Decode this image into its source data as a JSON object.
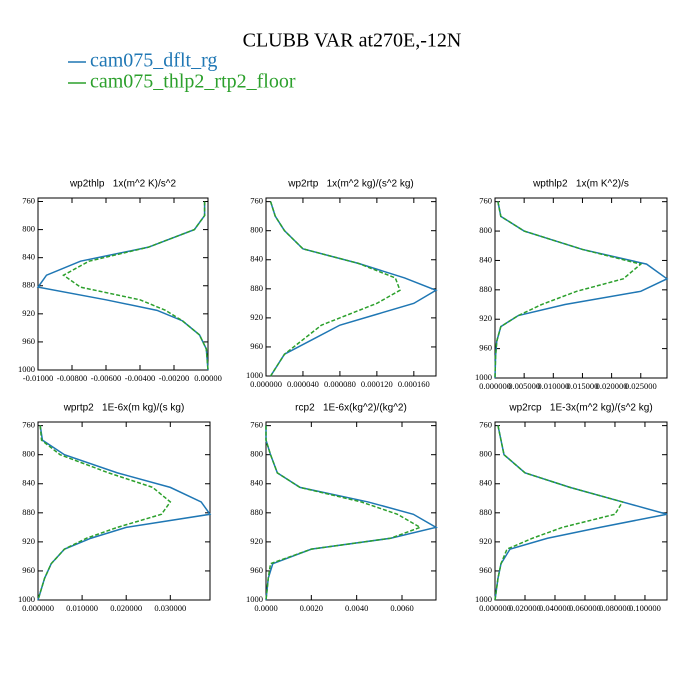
{
  "title": "CLUBB VAR at270E,-12N",
  "chart_data": [
    {
      "type": "line",
      "title": "wp2thlp   1x(m^2 K)/s^2",
      "y": [
        760,
        780,
        800,
        825,
        845,
        865,
        882,
        900,
        915,
        930,
        950,
        970,
        1000
      ],
      "ylim": [
        1000,
        755
      ],
      "yticks": [
        760,
        800,
        840,
        880,
        920,
        960,
        1000
      ],
      "xlim": [
        -0.01,
        0
      ],
      "xticks": [
        {
          "value": -0.01,
          "label": "-0.01000"
        },
        {
          "value": -0.008,
          "label": "-0.00800"
        },
        {
          "value": -0.006,
          "label": "-0.00600"
        },
        {
          "value": -0.004,
          "label": "-0.00400"
        },
        {
          "value": -0.002,
          "label": "-0.00200"
        },
        {
          "value": 0,
          "label": "0.00000"
        }
      ],
      "series": [
        {
          "name": "cam075_dflt_rg",
          "color": "#1f77b4",
          "dash": false,
          "values": [
            -0.0002,
            -0.0002,
            -0.0008,
            -0.0035,
            -0.0075,
            -0.0095,
            -0.01,
            -0.006,
            -0.003,
            -0.0015,
            -0.0005,
            -0.0001,
            0
          ]
        },
        {
          "name": "cam075_thlp2_rtp2_floor",
          "color": "#2ca02c",
          "dash": true,
          "values": [
            -0.0002,
            -0.0002,
            -0.0008,
            -0.0035,
            -0.007,
            -0.0085,
            -0.0075,
            -0.004,
            -0.0025,
            -0.0015,
            -0.0005,
            -0.0001,
            0
          ]
        }
      ]
    },
    {
      "type": "line",
      "title": "wp2rtp   1x(m^2 kg)/(s^2 kg)",
      "y": [
        760,
        780,
        800,
        825,
        845,
        865,
        882,
        900,
        915,
        930,
        950,
        970,
        1000
      ],
      "ylim": [
        1000,
        755
      ],
      "yticks": [
        760,
        800,
        840,
        880,
        920,
        960,
        1000
      ],
      "xlim": [
        0,
        0.000184
      ],
      "xticks": [
        {
          "value": 0,
          "label": "0.000000"
        },
        {
          "value": 4e-05,
          "label": "0.000040"
        },
        {
          "value": 8e-05,
          "label": "0.000080"
        },
        {
          "value": 0.00012,
          "label": "0.000120"
        },
        {
          "value": 0.00016,
          "label": "0.000160"
        }
      ],
      "series": [
        {
          "name": "cam075_dflt_rg",
          "color": "#1f77b4",
          "dash": false,
          "values": [
            5e-06,
            1e-05,
            2e-05,
            4e-05,
            0.0001,
            0.00015,
            0.000184,
            0.00016,
            0.00012,
            8e-05,
            5e-05,
            2e-05,
            5e-06
          ]
        },
        {
          "name": "cam075_thlp2_rtp2_floor",
          "color": "#2ca02c",
          "dash": true,
          "values": [
            5e-06,
            1e-05,
            2e-05,
            4e-05,
            0.0001,
            0.00014,
            0.000145,
            0.00012,
            9e-05,
            6e-05,
            4e-05,
            2e-05,
            5e-06
          ]
        }
      ]
    },
    {
      "type": "line",
      "title": "wpthlp2   1x(m K^2)/s",
      "y": [
        760,
        780,
        800,
        825,
        845,
        865,
        882,
        900,
        915,
        930,
        950,
        970,
        1000
      ],
      "ylim": [
        1000,
        755
      ],
      "yticks": [
        760,
        800,
        840,
        880,
        920,
        960,
        1000
      ],
      "xlim": [
        0,
        0.0295
      ],
      "xticks": [
        {
          "value": 0,
          "label": "0.000000"
        },
        {
          "value": 0.005,
          "label": "0.005000"
        },
        {
          "value": 0.01,
          "label": "0.010000"
        },
        {
          "value": 0.015,
          "label": "0.015000"
        },
        {
          "value": 0.02,
          "label": "0.020000"
        },
        {
          "value": 0.025,
          "label": "0.025000"
        }
      ],
      "series": [
        {
          "name": "cam075_dflt_rg",
          "color": "#1f77b4",
          "dash": false,
          "values": [
            0.0005,
            0.001,
            0.005,
            0.015,
            0.026,
            0.0295,
            0.025,
            0.012,
            0.004,
            0.001,
            0.0003,
            0.0001,
            0
          ]
        },
        {
          "name": "cam075_thlp2_rtp2_floor",
          "color": "#2ca02c",
          "dash": true,
          "values": [
            0.0005,
            0.001,
            0.005,
            0.015,
            0.025,
            0.022,
            0.014,
            0.008,
            0.004,
            0.001,
            0.0003,
            0.0001,
            0
          ]
        }
      ]
    },
    {
      "type": "line",
      "title": "wprtp2   1E-6x(m kg)/(s kg)",
      "y": [
        760,
        780,
        800,
        825,
        845,
        865,
        882,
        900,
        915,
        930,
        950,
        970,
        1000
      ],
      "ylim": [
        1000,
        755
      ],
      "yticks": [
        760,
        800,
        840,
        880,
        920,
        960,
        1000
      ],
      "xlim": [
        0,
        0.039
      ],
      "xticks": [
        {
          "value": 0,
          "label": "0.000000"
        },
        {
          "value": 0.01,
          "label": "0.010000"
        },
        {
          "value": 0.02,
          "label": "0.020000"
        },
        {
          "value": 0.03,
          "label": "0.030000"
        }
      ],
      "series": [
        {
          "name": "cam075_dflt_rg",
          "color": "#1f77b4",
          "dash": false,
          "values": [
            0.0005,
            0.001,
            0.006,
            0.018,
            0.03,
            0.037,
            0.039,
            0.02,
            0.012,
            0.006,
            0.003,
            0.0015,
            0
          ]
        },
        {
          "name": "cam075_thlp2_rtp2_floor",
          "color": "#2ca02c",
          "dash": true,
          "values": [
            0.0005,
            0.0008,
            0.005,
            0.016,
            0.026,
            0.03,
            0.028,
            0.018,
            0.011,
            0.006,
            0.003,
            0.0015,
            0
          ]
        }
      ]
    },
    {
      "type": "line",
      "title": "rcp2   1E-6x(kg^2)/(kg^2)",
      "y": [
        760,
        780,
        800,
        825,
        845,
        865,
        882,
        900,
        915,
        930,
        950,
        970,
        1000
      ],
      "ylim": [
        1000,
        755
      ],
      "yticks": [
        760,
        800,
        840,
        880,
        920,
        960,
        1000
      ],
      "xlim": [
        0,
        0.0075
      ],
      "xticks": [
        {
          "value": 0,
          "label": "0.0000"
        },
        {
          "value": 0.002,
          "label": "0.0020"
        },
        {
          "value": 0.004,
          "label": "0.0040"
        },
        {
          "value": 0.006,
          "label": "0.0060"
        }
      ],
      "series": [
        {
          "name": "cam075_dflt_rg",
          "color": "#1f77b4",
          "dash": false,
          "values": [
            0,
            0,
            0.0002,
            0.0005,
            0.0015,
            0.0045,
            0.0065,
            0.0075,
            0.0055,
            0.002,
            0.0003,
            0.0001,
            0
          ]
        },
        {
          "name": "cam075_thlp2_rtp2_floor",
          "color": "#2ca02c",
          "dash": true,
          "values": [
            0,
            0,
            0.0002,
            0.0005,
            0.0015,
            0.0042,
            0.0058,
            0.0068,
            0.0055,
            0.002,
            0.0002,
            0.0001,
            0
          ]
        }
      ]
    },
    {
      "type": "line",
      "title": "wp2rcp   1E-3x(m^2 kg)/(s^2 kg)",
      "y": [
        760,
        780,
        800,
        825,
        845,
        865,
        882,
        900,
        915,
        930,
        950,
        970,
        1000
      ],
      "ylim": [
        1000,
        755
      ],
      "yticks": [
        760,
        800,
        840,
        880,
        920,
        960,
        1000
      ],
      "xlim": [
        0,
        0.1147
      ],
      "xticks": [
        {
          "value": 0,
          "label": "0.000000"
        },
        {
          "value": 0.02,
          "label": "0.020000"
        },
        {
          "value": 0.04,
          "label": "0.040000"
        },
        {
          "value": 0.06,
          "label": "0.060000"
        },
        {
          "value": 0.08,
          "label": "0.080000"
        },
        {
          "value": 0.1,
          "label": "0.100000"
        }
      ],
      "series": [
        {
          "name": "cam075_dflt_rg",
          "color": "#1f77b4",
          "dash": false,
          "values": [
            0.002,
            0.004,
            0.006,
            0.02,
            0.05,
            0.085,
            0.1147,
            0.07,
            0.035,
            0.01,
            0.004,
            0.002,
            0
          ]
        },
        {
          "name": "cam075_thlp2_rtp2_floor",
          "color": "#2ca02c",
          "dash": true,
          "values": [
            0.002,
            0.004,
            0.006,
            0.02,
            0.05,
            0.085,
            0.08,
            0.045,
            0.025,
            0.008,
            0.004,
            0.002,
            0
          ]
        }
      ]
    }
  ]
}
